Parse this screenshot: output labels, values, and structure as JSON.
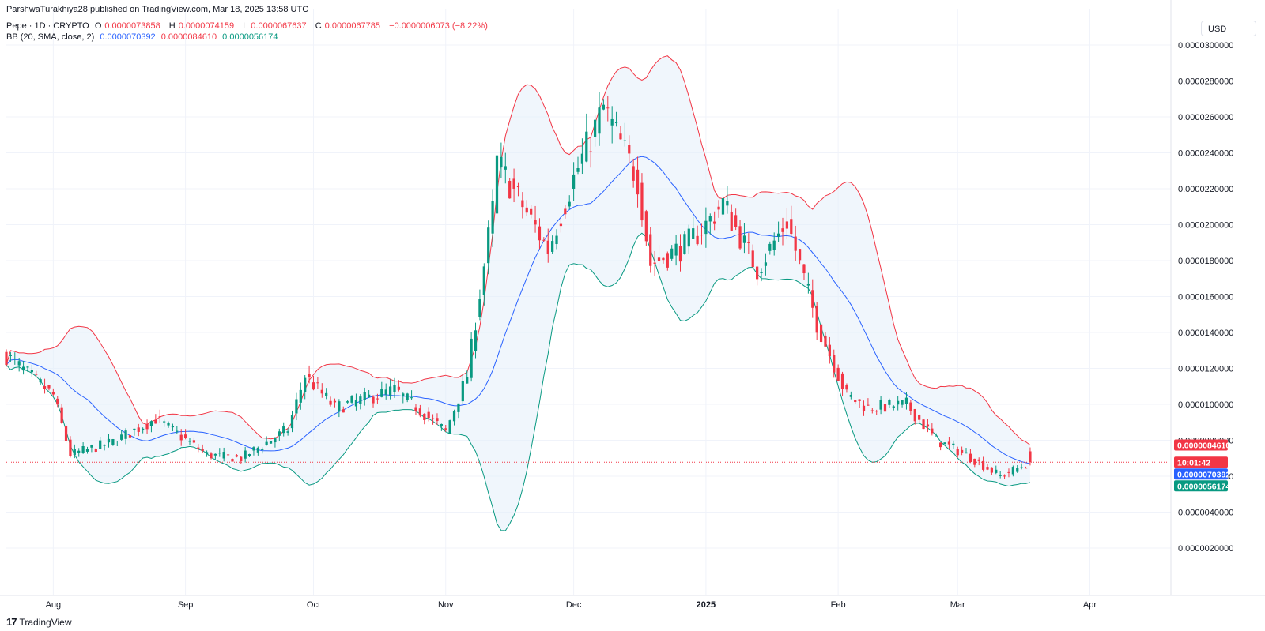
{
  "header": {
    "publisher_line": "ParshwaTurakhiya28 published on TradingView.com, Mar 18, 2025 13:58 UTC",
    "symbol": "Pepe · 1D · CRYPTO",
    "o_label": "O",
    "o_value": "0.0000073858",
    "h_label": "H",
    "h_value": "0.0000074159",
    "l_label": "L",
    "l_value": "0.0000067637",
    "c_label": "C",
    "c_value": "0.0000067785",
    "change": "−0.0000006073 (−8.22%)",
    "bb_label": "BB (20, SMA, close, 2)",
    "bb_basis": "0.0000070392",
    "bb_upper": "0.0000084610",
    "bb_lower": "0.0000056174"
  },
  "currency_button": "USD",
  "footer_logo": "TradingView",
  "colors": {
    "up": "#089981",
    "down": "#f23645",
    "basis": "#2962ff",
    "upper": "#f23645",
    "lower": "#089981",
    "fill": "#e3effa",
    "grid": "#f0f3fa"
  },
  "chart_data": {
    "type": "candlestick",
    "title": "Pepe · 1D · CRYPTO",
    "y_ticks": [
      "0.0000300000",
      "0.0000280000",
      "0.0000260000",
      "0.0000240000",
      "0.0000220000",
      "0.0000200000",
      "0.0000180000",
      "0.0000160000",
      "0.0000140000",
      "0.0000120000",
      "0.0000100000",
      "0.0000080000",
      "0.0000060000",
      "0.0000040000",
      "0.0000020000"
    ],
    "x_ticks": [
      "Aug",
      "Sep",
      "Oct",
      "Nov",
      "Dec",
      "2025",
      "Feb",
      "Mar",
      "Apr"
    ],
    "x_tick_dates": [
      "2024-08-01",
      "2024-09-01",
      "2024-10-01",
      "2024-11-01",
      "2024-12-01",
      "2025-01-01",
      "2025-02-01",
      "2025-03-01",
      "2025-04-01"
    ],
    "y_range": [
      5e-07,
      3.1e-05
    ],
    "date_range": [
      "2024-07-21",
      "2025-04-20"
    ],
    "price_labels": {
      "upper": "0.0000084610",
      "basis": "0.0000070392",
      "countdown": "10:01:42",
      "lower": "0.0000056174"
    },
    "last_close": 6.7785e-06,
    "key_points": [
      {
        "date": "2024-07-21",
        "close": 1.27e-05
      },
      {
        "date": "2024-08-01",
        "close": 1.05e-05
      },
      {
        "date": "2024-08-05",
        "close": 7.2e-06
      },
      {
        "date": "2024-08-15",
        "close": 7.9e-06
      },
      {
        "date": "2024-08-25",
        "close": 9.2e-06
      },
      {
        "date": "2024-09-06",
        "close": 7.2e-06
      },
      {
        "date": "2024-09-14",
        "close": 7e-06
      },
      {
        "date": "2024-09-25",
        "close": 8.6e-06
      },
      {
        "date": "2024-09-29",
        "close": 1.16e-05
      },
      {
        "date": "2024-10-06",
        "close": 9.8e-06
      },
      {
        "date": "2024-10-20",
        "close": 1.08e-05
      },
      {
        "date": "2024-11-01",
        "close": 8.5e-06
      },
      {
        "date": "2024-11-06",
        "close": 1.16e-05
      },
      {
        "date": "2024-11-12",
        "close": 2.08e-05
      },
      {
        "date": "2024-11-13",
        "close": 2.35e-05
      },
      {
        "date": "2024-11-25",
        "close": 1.86e-05
      },
      {
        "date": "2024-12-01",
        "close": 2.26e-05
      },
      {
        "date": "2024-12-08",
        "close": 2.65e-05
      },
      {
        "date": "2024-12-16",
        "close": 2.25e-05
      },
      {
        "date": "2024-12-19",
        "close": 1.78e-05
      },
      {
        "date": "2024-12-27",
        "close": 1.88e-05
      },
      {
        "date": "2025-01-01",
        "close": 2e-05
      },
      {
        "date": "2025-01-05",
        "close": 2.12e-05
      },
      {
        "date": "2025-01-13",
        "close": 1.75e-05
      },
      {
        "date": "2025-01-20",
        "close": 2.02e-05
      },
      {
        "date": "2025-01-27",
        "close": 1.45e-05
      },
      {
        "date": "2025-02-03",
        "close": 1.05e-05
      },
      {
        "date": "2025-02-08",
        "close": 9.8e-06
      },
      {
        "date": "2025-02-17",
        "close": 1e-05
      },
      {
        "date": "2025-02-24",
        "close": 8e-06
      },
      {
        "date": "2025-03-03",
        "close": 7.2e-06
      },
      {
        "date": "2025-03-11",
        "close": 6e-06
      },
      {
        "date": "2025-03-18",
        "close": 6.7785e-06
      }
    ]
  }
}
